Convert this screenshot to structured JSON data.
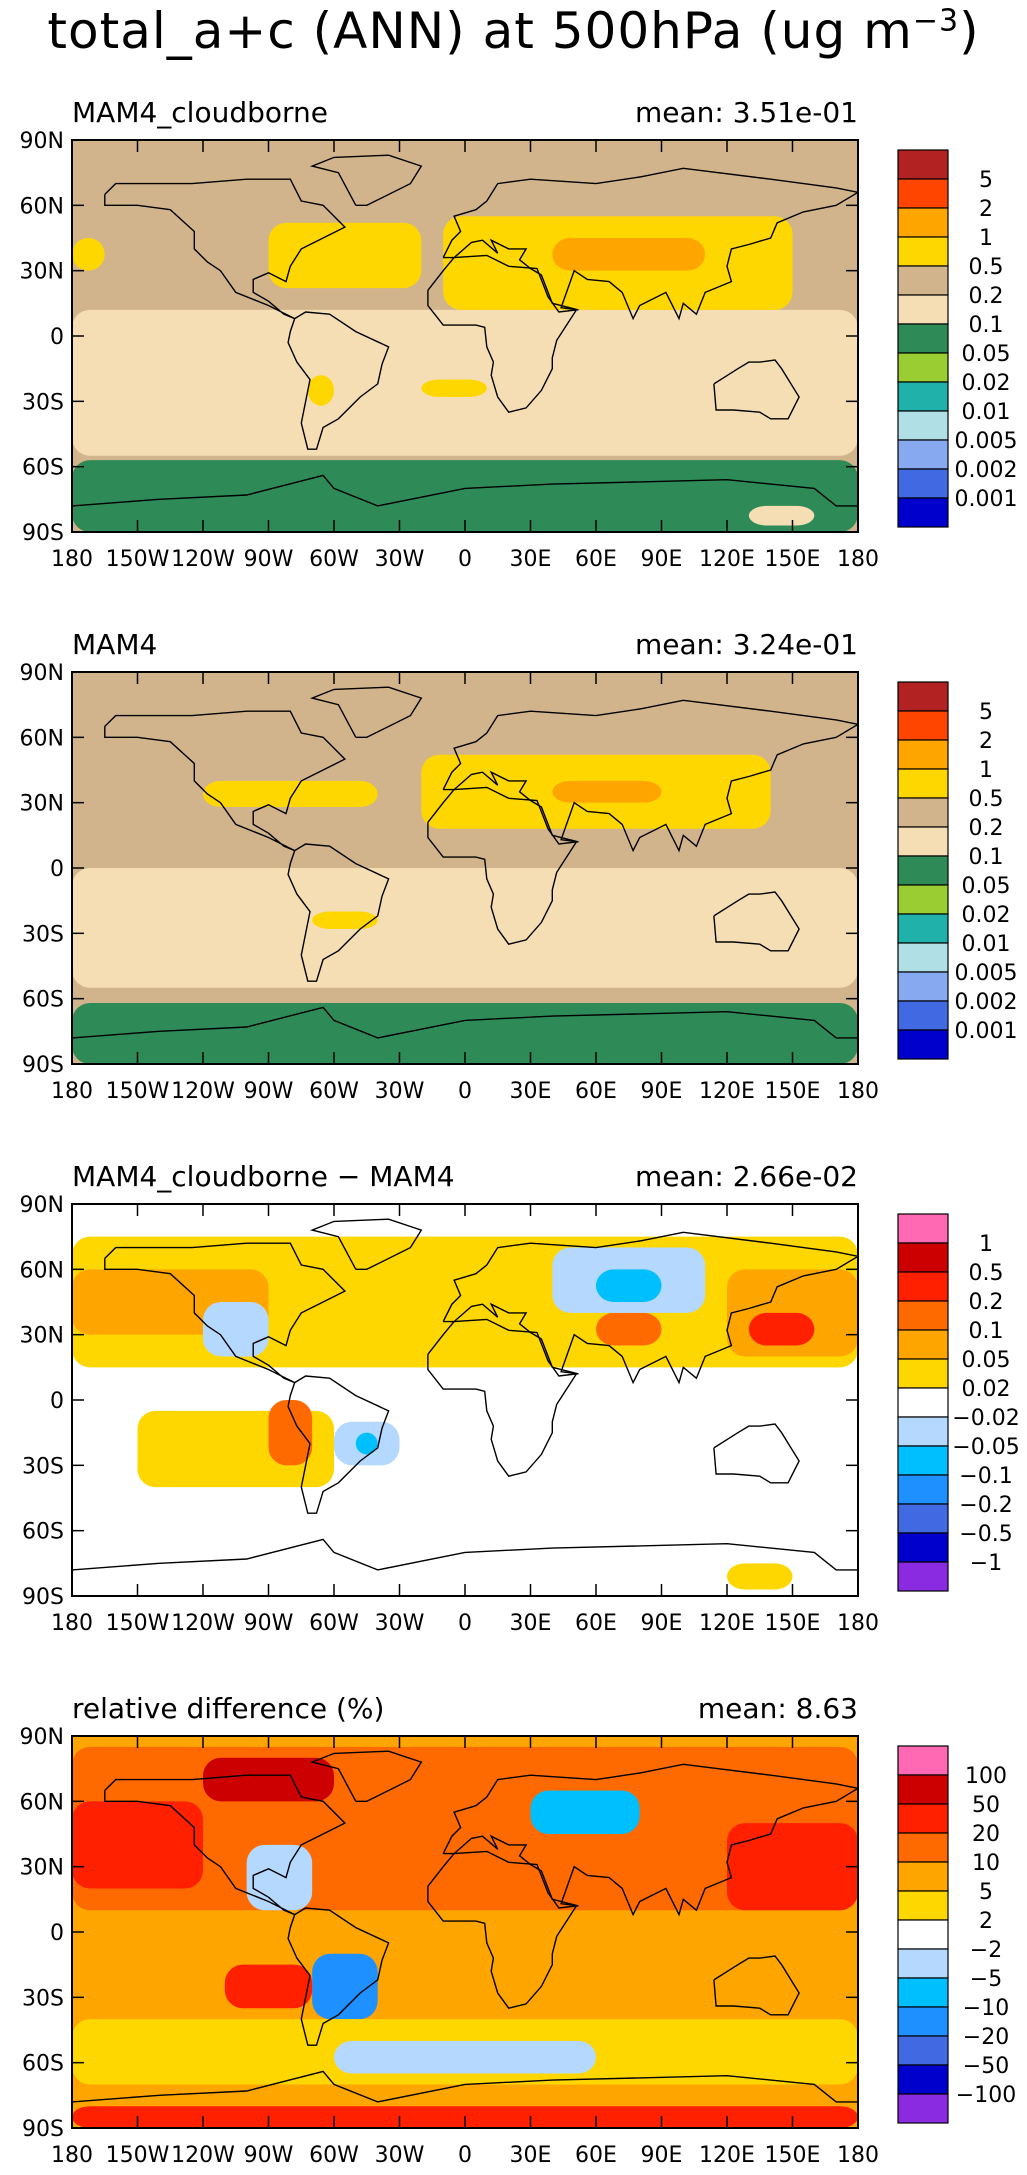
{
  "figure": {
    "title": "total_a+c (ANN) at 500hPa (ug m",
    "title_exponent": "−3",
    "title_close": ")"
  },
  "chart_data": [
    {
      "type": "heatmap",
      "title": "MAM4_cloudborne",
      "mean_label": "mean: 3.51e-01",
      "x_ticks": [
        "180",
        "150W",
        "120W",
        "90W",
        "60W",
        "30W",
        "0",
        "30E",
        "60E",
        "90E",
        "120E",
        "150E",
        "180"
      ],
      "y_ticks": [
        "90N",
        "60N",
        "30N",
        "0",
        "30S",
        "60S",
        "90S"
      ],
      "xlim": [
        -180,
        180
      ],
      "ylim": [
        -90,
        90
      ],
      "levels": [
        "5",
        "2",
        "1",
        "0.5",
        "0.2",
        "0.1",
        "0.05",
        "0.02",
        "0.01",
        "0.005",
        "0.002",
        "0.001"
      ],
      "colors": [
        "#b22222",
        "#ff4500",
        "#ffa500",
        "#ffd700",
        "#d2b48c",
        "#f5deb3",
        "#2e8b57",
        "#9acd32",
        "#20b2aa",
        "#b0e0e6",
        "#87a9f0",
        "#4169e1",
        "#0000cd"
      ],
      "background_color": "#d2b48c",
      "regions": [
        {
          "color": "#f5deb3",
          "lon": [
            -180,
            180
          ],
          "lat": [
            -55,
            12
          ]
        },
        {
          "color": "#ffd700",
          "lon": [
            -90,
            -20
          ],
          "lat": [
            22,
            52
          ]
        },
        {
          "color": "#ffd700",
          "lon": [
            -10,
            150
          ],
          "lat": [
            12,
            55
          ]
        },
        {
          "color": "#ffa500",
          "lon": [
            40,
            110
          ],
          "lat": [
            30,
            45
          ]
        },
        {
          "color": "#ffd700",
          "lon": [
            -180,
            -165
          ],
          "lat": [
            30,
            45
          ]
        },
        {
          "color": "#ffd700",
          "lon": [
            -72,
            -60
          ],
          "lat": [
            -32,
            -18
          ]
        },
        {
          "color": "#ffd700",
          "lon": [
            -20,
            10
          ],
          "lat": [
            -28,
            -20
          ]
        },
        {
          "color": "#2e8b57",
          "lon": [
            -180,
            180
          ],
          "lat": [
            -90,
            -57
          ]
        },
        {
          "color": "#f5deb3",
          "lon": [
            130,
            160
          ],
          "lat": [
            -87,
            -78
          ]
        }
      ]
    },
    {
      "type": "heatmap",
      "title": "MAM4",
      "mean_label": "mean: 3.24e-01",
      "x_ticks": [
        "180",
        "150W",
        "120W",
        "90W",
        "60W",
        "30W",
        "0",
        "30E",
        "60E",
        "90E",
        "120E",
        "150E",
        "180"
      ],
      "y_ticks": [
        "90N",
        "60N",
        "30N",
        "0",
        "30S",
        "60S",
        "90S"
      ],
      "xlim": [
        -180,
        180
      ],
      "ylim": [
        -90,
        90
      ],
      "levels": [
        "5",
        "2",
        "1",
        "0.5",
        "0.2",
        "0.1",
        "0.05",
        "0.02",
        "0.01",
        "0.005",
        "0.002",
        "0.001"
      ],
      "colors": [
        "#b22222",
        "#ff4500",
        "#ffa500",
        "#ffd700",
        "#d2b48c",
        "#f5deb3",
        "#2e8b57",
        "#9acd32",
        "#20b2aa",
        "#b0e0e6",
        "#87a9f0",
        "#4169e1",
        "#0000cd"
      ],
      "background_color": "#d2b48c",
      "regions": [
        {
          "color": "#f5deb3",
          "lon": [
            -180,
            180
          ],
          "lat": [
            -55,
            0
          ]
        },
        {
          "color": "#ffd700",
          "lon": [
            -120,
            -40
          ],
          "lat": [
            28,
            40
          ]
        },
        {
          "color": "#ffd700",
          "lon": [
            -20,
            140
          ],
          "lat": [
            18,
            52
          ]
        },
        {
          "color": "#ffa500",
          "lon": [
            40,
            90
          ],
          "lat": [
            30,
            40
          ]
        },
        {
          "color": "#ffd700",
          "lon": [
            -70,
            -40
          ],
          "lat": [
            -28,
            -20
          ]
        },
        {
          "color": "#2e8b57",
          "lon": [
            -180,
            180
          ],
          "lat": [
            -90,
            -62
          ]
        }
      ]
    },
    {
      "type": "heatmap",
      "title": "MAM4_cloudborne − MAM4",
      "mean_label": "mean: 2.66e-02",
      "x_ticks": [
        "180",
        "150W",
        "120W",
        "90W",
        "60W",
        "30W",
        "0",
        "30E",
        "60E",
        "90E",
        "120E",
        "150E",
        "180"
      ],
      "y_ticks": [
        "90N",
        "60N",
        "30N",
        "0",
        "30S",
        "60S",
        "90S"
      ],
      "xlim": [
        -180,
        180
      ],
      "ylim": [
        -90,
        90
      ],
      "levels": [
        "1",
        "0.5",
        "0.2",
        "0.1",
        "0.05",
        "0.02",
        "−0.02",
        "−0.05",
        "−0.1",
        "−0.2",
        "−0.5",
        "−1"
      ],
      "colors": [
        "#ff69b4",
        "#cc0000",
        "#ff2000",
        "#ff6a00",
        "#ffa500",
        "#ffd700",
        "#ffffff",
        "#b5d8ff",
        "#00bfff",
        "#1e90ff",
        "#4169e1",
        "#0000cd",
        "#8a2be2"
      ],
      "background_color": "#ffffff",
      "regions": [
        {
          "color": "#ffd700",
          "lon": [
            -180,
            180
          ],
          "lat": [
            15,
            75
          ]
        },
        {
          "color": "#ffa500",
          "lon": [
            -180,
            -90
          ],
          "lat": [
            30,
            60
          ]
        },
        {
          "color": "#ffa500",
          "lon": [
            120,
            180
          ],
          "lat": [
            20,
            60
          ]
        },
        {
          "color": "#ff6a00",
          "lon": [
            60,
            90
          ],
          "lat": [
            25,
            40
          ]
        },
        {
          "color": "#ff2000",
          "lon": [
            130,
            160
          ],
          "lat": [
            25,
            40
          ]
        },
        {
          "color": "#b5d8ff",
          "lon": [
            40,
            110
          ],
          "lat": [
            40,
            70
          ]
        },
        {
          "color": "#b5d8ff",
          "lon": [
            -120,
            -90
          ],
          "lat": [
            20,
            45
          ]
        },
        {
          "color": "#00bfff",
          "lon": [
            60,
            90
          ],
          "lat": [
            45,
            60
          ]
        },
        {
          "color": "#ffd700",
          "lon": [
            -150,
            -60
          ],
          "lat": [
            -40,
            -5
          ]
        },
        {
          "color": "#ff6a00",
          "lon": [
            -90,
            -70
          ],
          "lat": [
            -30,
            0
          ]
        },
        {
          "color": "#b5d8ff",
          "lon": [
            -60,
            -30
          ],
          "lat": [
            -30,
            -10
          ]
        },
        {
          "color": "#00bfff",
          "lon": [
            -50,
            -40
          ],
          "lat": [
            -25,
            -15
          ]
        },
        {
          "color": "#ffd700",
          "lon": [
            120,
            150
          ],
          "lat": [
            -87,
            -75
          ]
        }
      ]
    },
    {
      "type": "heatmap",
      "title": "relative difference (%)",
      "mean_label": "mean:  8.63",
      "x_ticks": [
        "180",
        "150W",
        "120W",
        "90W",
        "60W",
        "30W",
        "0",
        "30E",
        "60E",
        "90E",
        "120E",
        "150E",
        "180"
      ],
      "y_ticks": [
        "90N",
        "60N",
        "30N",
        "0",
        "30S",
        "60S",
        "90S"
      ],
      "xlim": [
        -180,
        180
      ],
      "ylim": [
        -90,
        90
      ],
      "levels": [
        "100",
        "50",
        "20",
        "10",
        "5",
        "2",
        "−2",
        "−5",
        "−10",
        "−20",
        "−50",
        "−100"
      ],
      "colors": [
        "#ff69b4",
        "#cc0000",
        "#ff2000",
        "#ff6a00",
        "#ffa500",
        "#ffd700",
        "#ffffff",
        "#b5d8ff",
        "#00bfff",
        "#1e90ff",
        "#4169e1",
        "#0000cd",
        "#8a2be2"
      ],
      "background_color": "#ffa500",
      "regions": [
        {
          "color": "#ff6a00",
          "lon": [
            -180,
            180
          ],
          "lat": [
            10,
            85
          ]
        },
        {
          "color": "#ff2000",
          "lon": [
            -180,
            -120
          ],
          "lat": [
            20,
            60
          ]
        },
        {
          "color": "#ff2000",
          "lon": [
            120,
            180
          ],
          "lat": [
            10,
            50
          ]
        },
        {
          "color": "#cc0000",
          "lon": [
            -120,
            -60
          ],
          "lat": [
            60,
            80
          ]
        },
        {
          "color": "#00bfff",
          "lon": [
            30,
            80
          ],
          "lat": [
            45,
            65
          ]
        },
        {
          "color": "#b5d8ff",
          "lon": [
            -100,
            -70
          ],
          "lat": [
            10,
            40
          ]
        },
        {
          "color": "#1e90ff",
          "lon": [
            -70,
            -40
          ],
          "lat": [
            -40,
            -10
          ]
        },
        {
          "color": "#ffd700",
          "lon": [
            -180,
            180
          ],
          "lat": [
            -70,
            -40
          ]
        },
        {
          "color": "#b5d8ff",
          "lon": [
            -60,
            60
          ],
          "lat": [
            -65,
            -50
          ]
        },
        {
          "color": "#ff2000",
          "lon": [
            -110,
            -70
          ],
          "lat": [
            -35,
            -15
          ]
        },
        {
          "color": "#ff2000",
          "lon": [
            -180,
            180
          ],
          "lat": [
            -90,
            -80
          ]
        }
      ]
    }
  ]
}
